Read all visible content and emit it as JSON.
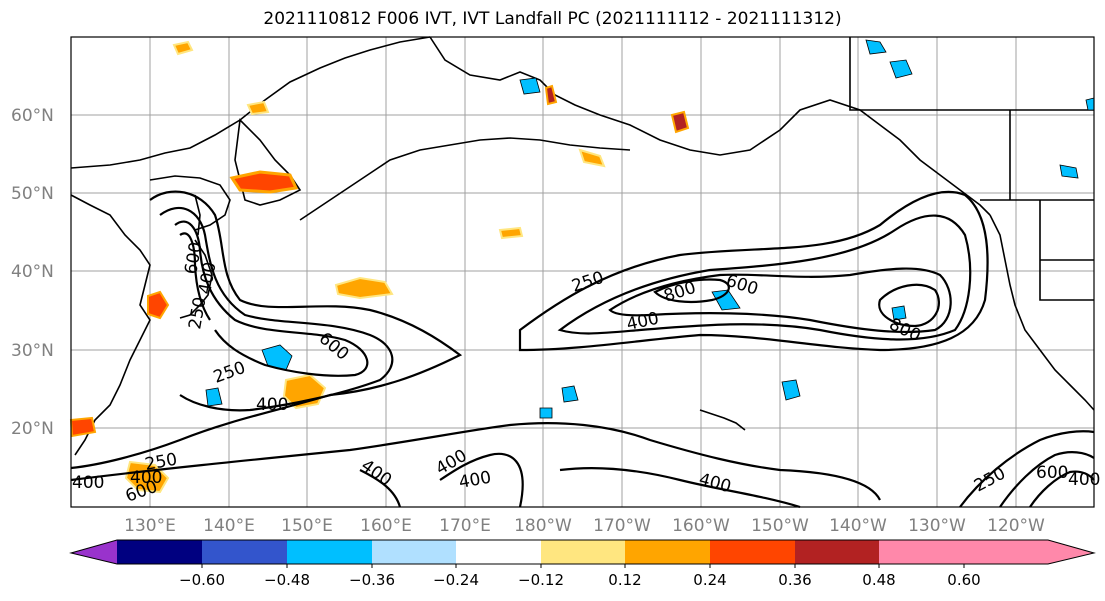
{
  "title": "2021110812 F006 IVT, IVT Landfall PC (2021111112 - 2021111312)",
  "lat_labels": [
    "20°N",
    "30°N",
    "40°N",
    "50°N",
    "60°N"
  ],
  "lon_labels": [
    "130°E",
    "140°E",
    "150°E",
    "160°E",
    "170°E",
    "180°W",
    "170°W",
    "160°W",
    "150°W",
    "140°W",
    "130°W",
    "120°W"
  ],
  "colorbar": {
    "labels": [
      "−0.60",
      "−0.48",
      "−0.36",
      "−0.24",
      "−0.12",
      "0.12",
      "0.24",
      "0.36",
      "0.48",
      "0.60"
    ],
    "colors": [
      "#9933cc",
      "#000080",
      "#3355cc",
      "#00bfff",
      "#b0e0ff",
      "#ffffff",
      "#ffe680",
      "#ffa500",
      "#ff4500",
      "#b22222",
      "#ff88aa"
    ]
  },
  "contour_labels": [
    "250",
    "400",
    "600",
    "800",
    "250",
    "400",
    "600",
    "800",
    "250",
    "400",
    "400",
    "400",
    "400",
    "400",
    "250",
    "600",
    "400",
    "600",
    "400",
    "250",
    "600",
    "400"
  ],
  "colors": {
    "contour": "#000000",
    "grid": "#a0a0a0",
    "coast": "#000000",
    "tick_label": "#808080"
  }
}
